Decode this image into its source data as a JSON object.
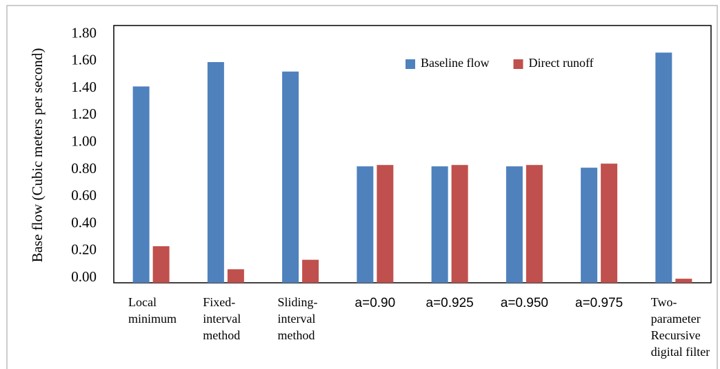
{
  "chart_data": {
    "type": "bar",
    "y_label": "Base flow (Cubic meters per second)",
    "categories": [
      [
        "Local",
        "minimum"
      ],
      [
        "Fixed-",
        "interval",
        "method"
      ],
      [
        "Sliding-",
        "interval",
        "method"
      ],
      [
        "a=0.90"
      ],
      [
        "a=0.925"
      ],
      [
        "a=0.950"
      ],
      [
        "a=0.975"
      ],
      [
        "Two-",
        "parameter",
        "Recursive",
        "digital filter"
      ]
    ],
    "series": [
      {
        "name": "Baseline flow",
        "color": "#4f81bd",
        "values": [
          1.45,
          1.63,
          1.56,
          0.86,
          0.86,
          0.86,
          0.85,
          1.7
        ]
      },
      {
        "name": "Direct runoff",
        "color": "#c0504d",
        "values": [
          0.27,
          0.1,
          0.17,
          0.87,
          0.87,
          0.87,
          0.88,
          0.03
        ]
      }
    ],
    "ylim": [
      0,
      1.9
    ],
    "yticks": [
      {
        "value": 0,
        "label": "0.00"
      },
      {
        "value": 0.2,
        "label": "0.20"
      },
      {
        "value": 0.4,
        "label": "0.40"
      },
      {
        "value": 0.6,
        "label": "0.60"
      },
      {
        "value": 0.8,
        "label": "0.80"
      },
      {
        "value": 1,
        "label": "1.00"
      },
      {
        "value": 1.2,
        "label": "1.20"
      },
      {
        "value": 1.4,
        "label": "1.40"
      },
      {
        "value": 1.6,
        "label": "1.60"
      },
      {
        "value": 1.8,
        "label": "1.80"
      }
    ],
    "grid": false,
    "legend": "upper right"
  }
}
